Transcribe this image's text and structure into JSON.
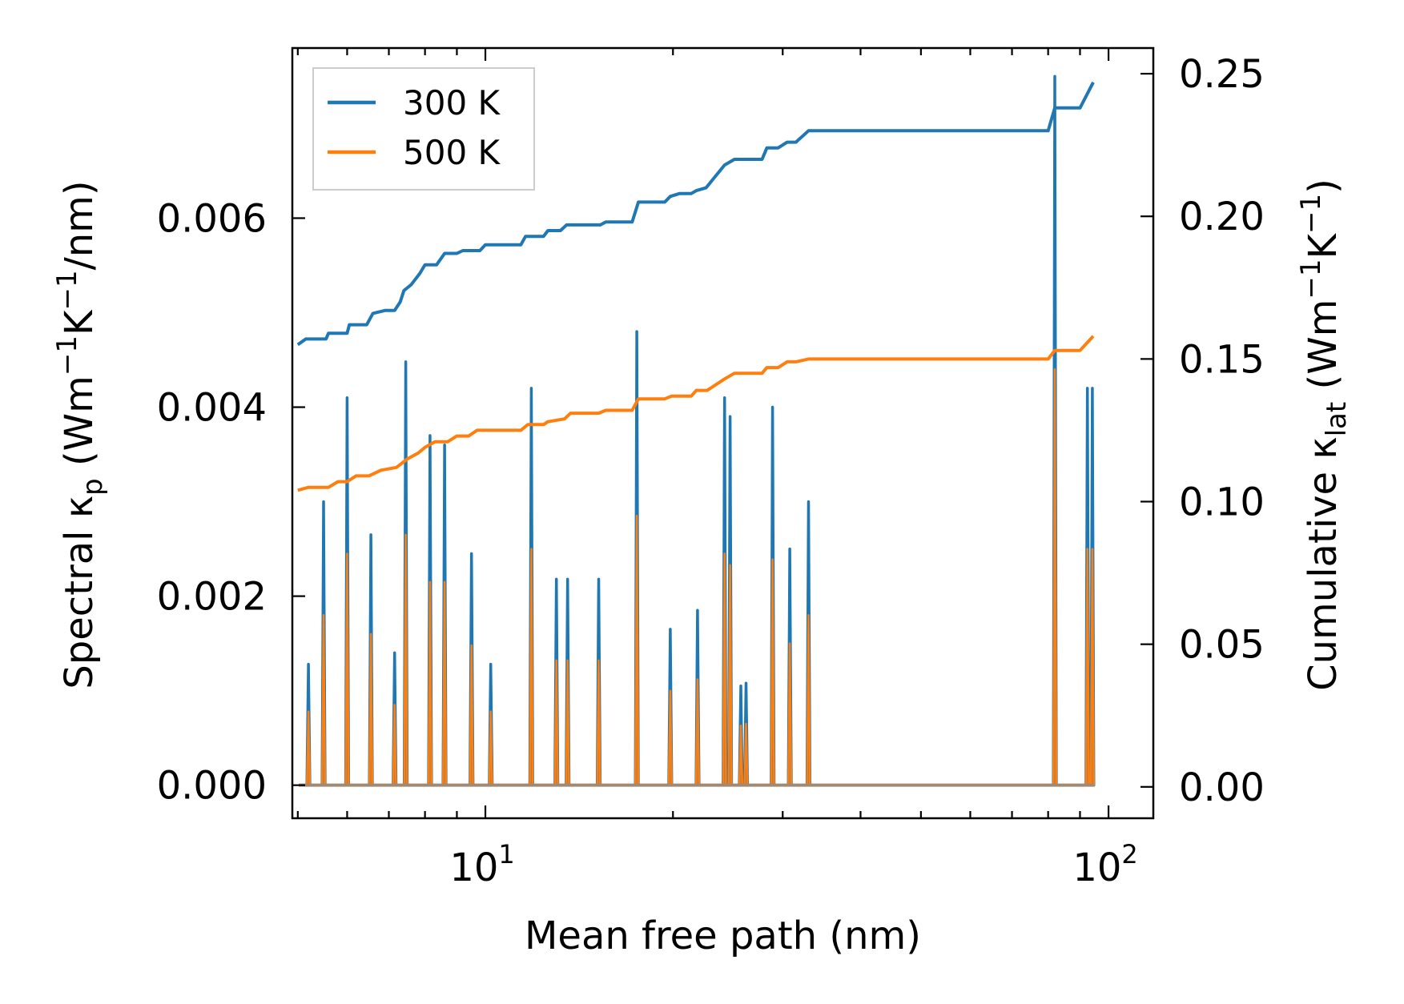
{
  "chart_data": {
    "type": "line",
    "xlabel": "Mean free path (nm)",
    "ylabel_left": {
      "base": "Spectral κ",
      "sub": "p",
      "units_open": " (Wm",
      "exp1": "−1",
      "mid": "K",
      "exp2": "−1",
      "units_close": "/nm)"
    },
    "ylabel_right": {
      "base": "Cumulative κ",
      "sub": "lat",
      "units_open": " (Wm",
      "exp1": "−1",
      "mid": "K",
      "exp2": "−1",
      "units_close": ")"
    },
    "x_scale": "log",
    "xlim": [
      4.9,
      118
    ],
    "x_ticks": [
      {
        "value": 10,
        "base": "10",
        "exp": "1"
      },
      {
        "value": 100,
        "base": "10",
        "exp": "2"
      }
    ],
    "ylim_left": [
      -0.00035,
      0.0078
    ],
    "yticks_left": [
      "0.000",
      "0.002",
      "0.004",
      "0.006"
    ],
    "ylim_right": [
      -0.011,
      0.259
    ],
    "yticks_right": [
      "0.00",
      "0.05",
      "0.10",
      "0.15",
      "0.20",
      "0.25"
    ],
    "legend": {
      "position": "upper-left",
      "entries": [
        "300 K",
        "500 K"
      ]
    },
    "colors": {
      "s300": "#1f77b4",
      "s500": "#ff7f0e",
      "s300_fill": "#1f77b4",
      "s500_fill": "#ff7f0e"
    },
    "spectral": {
      "peaks_300": [
        [
          5.2,
          0.00128
        ],
        [
          5.5,
          0.003
        ],
        [
          6.0,
          0.0041
        ],
        [
          6.55,
          0.00265
        ],
        [
          7.15,
          0.0014
        ],
        [
          7.45,
          0.00448
        ],
        [
          8.15,
          0.0037
        ],
        [
          8.6,
          0.0036
        ],
        [
          9.5,
          0.00245
        ],
        [
          10.2,
          0.00128
        ],
        [
          11.85,
          0.0042
        ],
        [
          13.0,
          0.00218
        ],
        [
          13.55,
          0.00218
        ],
        [
          15.2,
          0.00218
        ],
        [
          17.5,
          0.0048
        ],
        [
          19.8,
          0.00165
        ],
        [
          21.9,
          0.00185
        ],
        [
          24.2,
          0.0041
        ],
        [
          24.7,
          0.0039
        ],
        [
          25.7,
          0.00105
        ],
        [
          26.2,
          0.00108
        ],
        [
          28.9,
          0.004
        ],
        [
          30.8,
          0.0025
        ],
        [
          33.0,
          0.003
        ],
        [
          82.0,
          0.0075
        ],
        [
          92.5,
          0.0042
        ],
        [
          94.2,
          0.0042
        ]
      ],
      "peaks_500": [
        [
          5.2,
          0.00078
        ],
        [
          5.5,
          0.0018
        ],
        [
          6.0,
          0.00245
        ],
        [
          6.55,
          0.0016
        ],
        [
          7.15,
          0.00085
        ],
        [
          7.45,
          0.00265
        ],
        [
          8.15,
          0.00215
        ],
        [
          8.6,
          0.00215
        ],
        [
          9.5,
          0.00148
        ],
        [
          10.2,
          0.00078
        ],
        [
          11.85,
          0.0025
        ],
        [
          13.0,
          0.00132
        ],
        [
          13.55,
          0.00132
        ],
        [
          15.2,
          0.00132
        ],
        [
          17.5,
          0.00285
        ],
        [
          19.8,
          0.001
        ],
        [
          21.9,
          0.00112
        ],
        [
          24.2,
          0.00245
        ],
        [
          24.7,
          0.00233
        ],
        [
          25.7,
          0.00063
        ],
        [
          26.2,
          0.00065
        ],
        [
          28.9,
          0.00239
        ],
        [
          30.8,
          0.0015
        ],
        [
          33.0,
          0.0018
        ],
        [
          82.0,
          0.0044
        ],
        [
          92.5,
          0.0025
        ],
        [
          94.2,
          0.0025
        ]
      ]
    },
    "cumulative": {
      "series_300": [
        [
          5.0,
          0.155
        ],
        [
          5.15,
          0.157
        ],
        [
          5.55,
          0.157
        ],
        [
          5.6,
          0.159
        ],
        [
          6.0,
          0.159
        ],
        [
          6.05,
          0.162
        ],
        [
          6.45,
          0.162
        ],
        [
          6.6,
          0.166
        ],
        [
          6.9,
          0.167
        ],
        [
          7.15,
          0.167
        ],
        [
          7.3,
          0.17
        ],
        [
          7.4,
          0.174
        ],
        [
          7.6,
          0.176
        ],
        [
          7.85,
          0.18
        ],
        [
          8.0,
          0.183
        ],
        [
          8.35,
          0.183
        ],
        [
          8.6,
          0.187
        ],
        [
          9.0,
          0.187
        ],
        [
          9.2,
          0.188
        ],
        [
          9.8,
          0.188
        ],
        [
          10.0,
          0.19
        ],
        [
          11.4,
          0.19
        ],
        [
          11.6,
          0.193
        ],
        [
          12.4,
          0.193
        ],
        [
          12.6,
          0.195
        ],
        [
          13.2,
          0.195
        ],
        [
          13.5,
          0.197
        ],
        [
          15.3,
          0.197
        ],
        [
          15.6,
          0.198
        ],
        [
          17.2,
          0.198
        ],
        [
          17.6,
          0.205
        ],
        [
          19.4,
          0.205
        ],
        [
          19.8,
          0.207
        ],
        [
          20.5,
          0.208
        ],
        [
          21.4,
          0.208
        ],
        [
          21.8,
          0.209
        ],
        [
          22.6,
          0.21
        ],
        [
          24.2,
          0.218
        ],
        [
          25.1,
          0.22
        ],
        [
          27.8,
          0.22
        ],
        [
          28.3,
          0.224
        ],
        [
          29.5,
          0.224
        ],
        [
          30.5,
          0.226
        ],
        [
          31.5,
          0.226
        ],
        [
          33.0,
          0.23
        ],
        [
          80.0,
          0.23
        ],
        [
          82.0,
          0.238
        ],
        [
          90.0,
          0.238
        ],
        [
          94.5,
          0.247
        ]
      ],
      "series_500": [
        [
          5.0,
          0.104
        ],
        [
          5.2,
          0.105
        ],
        [
          5.6,
          0.105
        ],
        [
          5.8,
          0.107
        ],
        [
          6.0,
          0.107
        ],
        [
          6.2,
          0.109
        ],
        [
          6.5,
          0.109
        ],
        [
          6.8,
          0.111
        ],
        [
          7.2,
          0.112
        ],
        [
          7.5,
          0.115
        ],
        [
          7.8,
          0.117
        ],
        [
          8.0,
          0.119
        ],
        [
          8.3,
          0.121
        ],
        [
          8.7,
          0.121
        ],
        [
          9.0,
          0.123
        ],
        [
          9.4,
          0.123
        ],
        [
          9.7,
          0.125
        ],
        [
          11.4,
          0.125
        ],
        [
          11.7,
          0.127
        ],
        [
          12.4,
          0.127
        ],
        [
          12.6,
          0.128
        ],
        [
          13.4,
          0.129
        ],
        [
          13.7,
          0.131
        ],
        [
          15.2,
          0.131
        ],
        [
          15.6,
          0.132
        ],
        [
          17.2,
          0.132
        ],
        [
          17.6,
          0.136
        ],
        [
          19.4,
          0.136
        ],
        [
          19.9,
          0.137
        ],
        [
          21.4,
          0.137
        ],
        [
          21.8,
          0.139
        ],
        [
          22.7,
          0.139
        ],
        [
          24.2,
          0.143
        ],
        [
          25.1,
          0.145
        ],
        [
          27.8,
          0.145
        ],
        [
          28.3,
          0.147
        ],
        [
          29.5,
          0.147
        ],
        [
          30.5,
          0.149
        ],
        [
          31.5,
          0.149
        ],
        [
          33.0,
          0.15
        ],
        [
          80.0,
          0.15
        ],
        [
          82.0,
          0.153
        ],
        [
          90.0,
          0.153
        ],
        [
          94.5,
          0.158
        ]
      ]
    }
  }
}
